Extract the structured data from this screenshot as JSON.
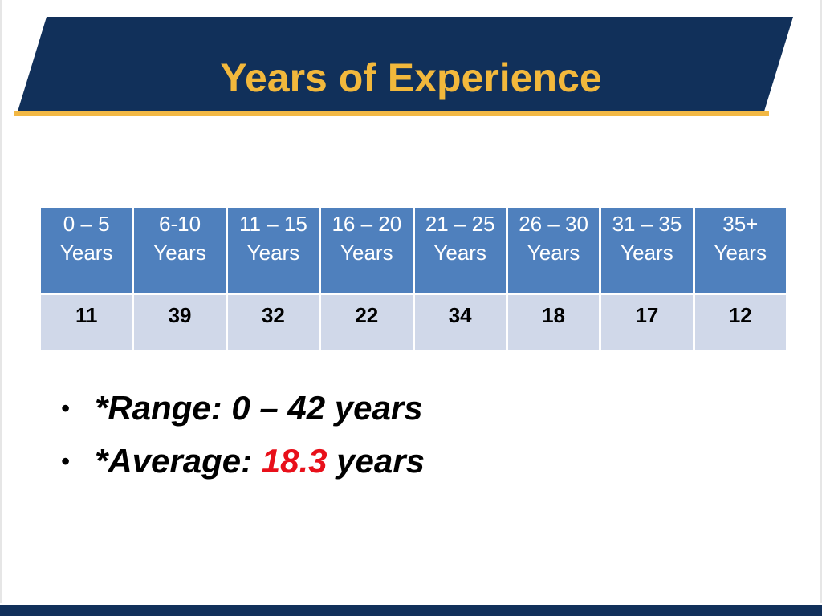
{
  "slide": {
    "title": "Years of Experience"
  },
  "table": {
    "headers": [
      {
        "line1": "0 – 5",
        "line2": "Years"
      },
      {
        "line1": "6-10",
        "line2": "Years"
      },
      {
        "line1": "11 – 15",
        "line2": "Years"
      },
      {
        "line1": "16 – 20",
        "line2": "Years"
      },
      {
        "line1": "21 – 25",
        "line2": "Years"
      },
      {
        "line1": "26 – 30",
        "line2": "Years"
      },
      {
        "line1": "31 – 35",
        "line2": "Years"
      },
      {
        "line1": "35+",
        "line2": "Years"
      }
    ],
    "values": [
      "11",
      "39",
      "32",
      "22",
      "34",
      "18",
      "17",
      "12"
    ]
  },
  "bullets": {
    "range": "*Range: 0 – 42 years",
    "average_prefix": "*Average: ",
    "average_value": "18.3",
    "average_suffix": " years",
    "bullet_char": "•"
  },
  "colors": {
    "banner": "#11305a",
    "title_text": "#f2b83c",
    "header_cell": "#4f80bd",
    "value_cell": "#d0d8e9",
    "highlight": "#e8101a"
  }
}
